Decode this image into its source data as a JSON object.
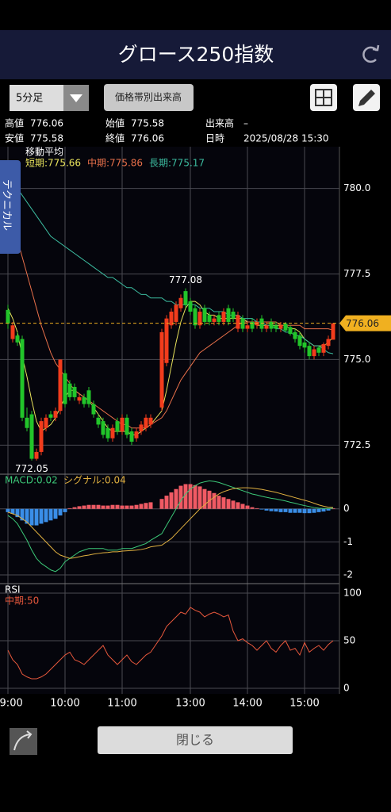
{
  "header": {
    "title": "グロース250指数"
  },
  "toolbar": {
    "interval": "5分足",
    "volume_button": "価格帯別出来高"
  },
  "info": [
    {
      "label": "高値",
      "value": "776.06"
    },
    {
      "label": "始値",
      "value": "775.58"
    },
    {
      "label": "出来高",
      "value": "–"
    },
    {
      "label": "安値",
      "value": "775.58"
    },
    {
      "label": "終値",
      "value": "776.06"
    },
    {
      "label": "日時",
      "value": "2025/08/28 15:30"
    }
  ],
  "side_tab": "テクニカル",
  "footer": {
    "close": "閉じる"
  },
  "chart_data": [
    {
      "type": "candlestick",
      "title": "移動平均",
      "x": [
        "09:00",
        "09:05",
        "09:10",
        "09:15",
        "09:20",
        "09:25",
        "09:30",
        "09:35",
        "09:40",
        "09:45",
        "09:50",
        "09:55",
        "10:00",
        "10:05",
        "10:10",
        "10:15",
        "10:20",
        "10:25",
        "10:30",
        "10:35",
        "10:40",
        "10:45",
        "10:50",
        "10:55",
        "11:00",
        "11:05",
        "11:10",
        "11:15",
        "11:20",
        "11:25",
        "11:30",
        "12:30",
        "12:35",
        "12:40",
        "12:45",
        "12:50",
        "12:55",
        "13:00",
        "13:05",
        "13:10",
        "13:15",
        "13:20",
        "13:25",
        "13:30",
        "13:35",
        "13:40",
        "13:45",
        "13:50",
        "13:55",
        "14:00",
        "14:05",
        "14:10",
        "14:15",
        "14:20",
        "14:25",
        "14:30",
        "14:35",
        "14:40",
        "14:45",
        "14:50",
        "14:55",
        "15:00",
        "15:05",
        "15:10",
        "15:15",
        "15:20",
        "15:25",
        "15:30"
      ],
      "open": [
        776.45,
        775.6,
        775.7,
        775.6,
        773.3,
        773.4,
        772.1,
        772.3,
        773.0,
        773.4,
        773.3,
        773.5,
        774.6,
        774.3,
        774.2,
        773.8,
        773.9,
        774.1,
        773.7,
        773.3,
        773.2,
        773.0,
        772.7,
        773.2,
        772.9,
        773.3,
        772.9,
        772.7,
        772.9,
        773.0,
        773.1,
        773.6,
        774.9,
        776.0,
        776.1,
        776.5,
        777.0,
        776.7,
        776.5,
        776.0,
        776.5,
        776.3,
        776.1,
        776.3,
        776.1,
        776.5,
        776.4,
        775.9,
        776.2,
        775.9,
        776.1,
        776.0,
        776.2,
        775.9,
        776.1,
        776.0,
        775.9,
        776.05,
        775.95,
        775.8,
        775.7,
        775.5,
        775.4,
        775.1,
        775.35,
        775.2,
        775.4,
        775.58
      ],
      "high": [
        776.6,
        776.1,
        775.8,
        775.7,
        773.6,
        773.5,
        772.4,
        773.3,
        773.4,
        773.5,
        773.6,
        775.0,
        774.7,
        774.4,
        774.3,
        774.0,
        774.0,
        774.2,
        773.8,
        773.4,
        773.3,
        773.1,
        773.1,
        773.3,
        773.4,
        773.4,
        773.0,
        773.0,
        773.2,
        773.4,
        773.4,
        775.9,
        776.3,
        776.5,
        776.7,
        776.9,
        777.08,
        776.8,
        776.6,
        776.5,
        776.6,
        776.4,
        776.3,
        776.4,
        776.5,
        776.6,
        776.5,
        776.4,
        776.3,
        776.1,
        776.2,
        776.2,
        776.3,
        776.1,
        776.2,
        776.1,
        776.1,
        776.1,
        776.0,
        775.9,
        775.8,
        775.6,
        775.5,
        775.4,
        775.4,
        775.5,
        775.7,
        776.06
      ],
      "low": [
        775.9,
        775.5,
        775.4,
        773.2,
        772.9,
        772.05,
        772.05,
        772.2,
        772.9,
        773.2,
        773.2,
        773.4,
        773.6,
        773.8,
        773.8,
        773.7,
        773.6,
        773.6,
        773.3,
        773.0,
        772.7,
        772.6,
        772.6,
        772.8,
        772.8,
        772.7,
        772.5,
        772.6,
        772.8,
        772.9,
        773.0,
        773.5,
        774.8,
        775.9,
        776.0,
        776.4,
        776.5,
        776.3,
        775.9,
        775.9,
        776.0,
        776.0,
        776.0,
        776.0,
        776.0,
        776.0,
        776.1,
        775.8,
        775.8,
        775.8,
        775.8,
        775.9,
        775.8,
        775.8,
        775.8,
        775.8,
        775.8,
        775.8,
        775.7,
        775.5,
        775.3,
        775.2,
        775.0,
        775.0,
        775.1,
        775.1,
        775.3,
        775.58
      ],
      "close": [
        776.05,
        776.0,
        775.5,
        773.3,
        773.0,
        772.1,
        772.3,
        773.2,
        773.3,
        773.3,
        773.5,
        775.0,
        773.7,
        773.9,
        773.9,
        773.9,
        773.7,
        773.7,
        773.4,
        773.1,
        772.8,
        772.7,
        773.0,
        772.9,
        773.3,
        772.8,
        772.6,
        772.9,
        773.1,
        773.3,
        773.3,
        775.8,
        776.2,
        776.4,
        776.6,
        776.8,
        776.6,
        776.4,
        776.0,
        776.4,
        776.1,
        776.1,
        776.2,
        776.1,
        776.4,
        776.1,
        776.2,
        776.3,
        775.9,
        776.0,
        775.9,
        776.1,
        775.9,
        776.0,
        775.9,
        775.9,
        776.0,
        775.85,
        775.75,
        775.6,
        775.4,
        775.35,
        775.1,
        775.3,
        775.2,
        775.45,
        775.6,
        776.06
      ],
      "up_color": "#f23c1c",
      "down_color": "#22c52a",
      "series": [
        {
          "name": "短期:775.66",
          "color": "#e8e25c",
          "values": [
            776.5,
            776.2,
            775.8,
            775.1,
            774.5,
            773.8,
            773.2,
            772.9,
            773.0,
            773.1,
            773.3,
            773.6,
            773.9,
            774.1,
            774.1,
            774.0,
            773.9,
            773.8,
            773.6,
            773.4,
            773.2,
            773.0,
            772.9,
            772.9,
            772.9,
            772.9,
            772.8,
            772.8,
            772.9,
            773.0,
            773.1,
            773.5,
            774.1,
            774.8,
            775.5,
            776.1,
            776.5,
            776.7,
            776.7,
            776.6,
            776.4,
            776.3,
            776.3,
            776.2,
            776.2,
            776.2,
            776.2,
            776.2,
            776.2,
            776.1,
            776.1,
            776.0,
            776.0,
            776.0,
            776.0,
            776.0,
            776.0,
            776.0,
            775.9,
            775.9,
            775.8,
            775.6,
            775.5,
            775.4,
            775.4,
            775.4,
            775.5,
            775.66
          ]
        },
        {
          "name": "中期:775.86",
          "color": "#e8704a",
          "values": [
            779.3,
            778.9,
            778.5,
            778.0,
            777.5,
            777.0,
            776.5,
            776.0,
            775.6,
            775.2,
            774.9,
            774.7,
            774.5,
            774.3,
            774.1,
            774.0,
            773.9,
            773.8,
            773.7,
            773.6,
            773.5,
            773.4,
            773.3,
            773.2,
            773.1,
            773.1,
            773.0,
            773.0,
            773.0,
            773.0,
            773.1,
            773.3,
            773.5,
            773.8,
            774.1,
            774.4,
            774.6,
            774.8,
            775.0,
            775.2,
            775.3,
            775.4,
            775.5,
            775.6,
            775.7,
            775.8,
            775.9,
            776.0,
            776.1,
            776.1,
            776.1,
            776.1,
            776.1,
            776.1,
            776.1,
            776.1,
            776.0,
            776.0,
            776.0,
            776.0,
            776.0,
            775.9,
            775.9,
            775.9,
            775.9,
            775.9,
            775.9,
            775.86
          ]
        },
        {
          "name": "長期:775.17",
          "color": "#3cbca0",
          "values": [
            780.3,
            780.2,
            780.0,
            779.8,
            779.6,
            779.4,
            779.2,
            779.0,
            778.8,
            778.6,
            778.5,
            778.4,
            778.3,
            778.2,
            778.1,
            778.0,
            777.9,
            777.8,
            777.7,
            777.6,
            777.5,
            777.4,
            777.4,
            777.3,
            777.2,
            777.1,
            777.1,
            777.0,
            776.9,
            776.9,
            776.8,
            776.8,
            776.7,
            776.7,
            776.6,
            776.6,
            776.6,
            776.6,
            776.6,
            776.5,
            776.5,
            776.5,
            776.4,
            776.4,
            776.4,
            776.3,
            776.3,
            776.3,
            776.2,
            776.2,
            776.2,
            776.1,
            776.1,
            776.0,
            776.0,
            775.9,
            775.9,
            775.8,
            775.8,
            775.7,
            775.7,
            775.6,
            775.5,
            775.4,
            775.4,
            775.3,
            775.2,
            775.17
          ]
        }
      ],
      "last": 776.06,
      "last_color": "#f0b020",
      "annotations": [
        {
          "x": "12:55",
          "value": 777.08
        },
        {
          "x": "09:25",
          "value": 772.05
        }
      ],
      "ylim": [
        771.65,
        781.22
      ],
      "yticks": [
        {
          "value": 780,
          "label": "780.0"
        },
        777.5,
        {
          "value": 775,
          "label": "775.0"
        },
        772.5
      ],
      "grid": true
    },
    {
      "type": "macd",
      "series": [
        {
          "name": "MACD:0.02",
          "color": "#3cc878",
          "values": [
            -0.2,
            -0.3,
            -0.45,
            -0.7,
            -0.95,
            -1.25,
            -1.5,
            -1.65,
            -1.75,
            -1.85,
            -1.9,
            -1.8,
            -1.6,
            -1.5,
            -1.4,
            -1.3,
            -1.25,
            -1.2,
            -1.2,
            -1.2,
            -1.2,
            -1.25,
            -1.25,
            -1.25,
            -1.2,
            -1.2,
            -1.2,
            -1.15,
            -1.1,
            -1.05,
            -0.95,
            -0.75,
            -0.5,
            -0.25,
            0.0,
            0.25,
            0.45,
            0.6,
            0.7,
            0.78,
            0.82,
            0.85,
            0.83,
            0.8,
            0.75,
            0.7,
            0.65,
            0.6,
            0.55,
            0.5,
            0.45,
            0.42,
            0.38,
            0.35,
            0.32,
            0.3,
            0.27,
            0.24,
            0.2,
            0.17,
            0.13,
            0.1,
            0.07,
            0.04,
            0.02,
            0.01,
            0.01,
            0.02
          ]
        },
        {
          "name": "シグナル:0.04",
          "color": "#e0b040",
          "values": [
            -0.1,
            -0.15,
            -0.2,
            -0.3,
            -0.4,
            -0.55,
            -0.7,
            -0.85,
            -1.0,
            -1.15,
            -1.3,
            -1.4,
            -1.45,
            -1.5,
            -1.48,
            -1.45,
            -1.42,
            -1.4,
            -1.37,
            -1.35,
            -1.33,
            -1.32,
            -1.3,
            -1.3,
            -1.28,
            -1.27,
            -1.26,
            -1.25,
            -1.23,
            -1.2,
            -1.15,
            -1.1,
            -1.0,
            -0.9,
            -0.75,
            -0.6,
            -0.45,
            -0.3,
            -0.15,
            0.0,
            0.12,
            0.25,
            0.35,
            0.45,
            0.52,
            0.57,
            0.61,
            0.63,
            0.64,
            0.64,
            0.63,
            0.61,
            0.59,
            0.56,
            0.53,
            0.5,
            0.46,
            0.42,
            0.38,
            0.34,
            0.3,
            0.26,
            0.22,
            0.17,
            0.12,
            0.08,
            0.05,
            0.04
          ]
        }
      ],
      "histogram": {
        "up_color": "#f05a64",
        "down_color": "#3a8ee8",
        "values": [
          -0.1,
          -0.15,
          -0.25,
          -0.35,
          -0.45,
          -0.5,
          -0.5,
          -0.45,
          -0.4,
          -0.35,
          -0.3,
          -0.2,
          -0.1,
          0.02,
          0.05,
          0.08,
          0.1,
          0.12,
          0.12,
          0.12,
          0.1,
          0.1,
          0.12,
          0.12,
          0.1,
          0.1,
          0.1,
          0.12,
          0.15,
          0.18,
          0.2,
          0.3,
          0.4,
          0.5,
          0.6,
          0.7,
          0.75,
          0.75,
          0.72,
          0.68,
          0.6,
          0.55,
          0.48,
          0.4,
          0.35,
          0.3,
          0.25,
          0.2,
          0.15,
          0.1,
          0.05,
          0.02,
          -0.02,
          -0.05,
          -0.07,
          -0.08,
          -0.1,
          -0.1,
          -0.12,
          -0.12,
          -0.12,
          -0.13,
          -0.13,
          -0.12,
          -0.1,
          -0.08,
          -0.05,
          0.02
        ]
      },
      "ylim": [
        -2.24,
        1.05
      ],
      "yticks": [
        0,
        -1,
        -2
      ],
      "grid": true
    },
    {
      "type": "line",
      "title": "RSI",
      "series": [
        {
          "name": "中期:50",
          "color": "#e8583c",
          "values": [
            40,
            30,
            25,
            15,
            12,
            10,
            10,
            12,
            15,
            20,
            25,
            30,
            35,
            38,
            30,
            28,
            25,
            30,
            35,
            40,
            45,
            35,
            30,
            25,
            30,
            35,
            28,
            25,
            30,
            35,
            38,
            55,
            65,
            70,
            75,
            80,
            78,
            85,
            82,
            80,
            75,
            78,
            80,
            78,
            75,
            77,
            60,
            50,
            52,
            48,
            45,
            40,
            45,
            50,
            42,
            38,
            45,
            50,
            40,
            42,
            35,
            48,
            38,
            42,
            45,
            40,
            46,
            50
          ]
        }
      ],
      "ylim": [
        -5.8,
        108.3
      ],
      "yticks": [
        0,
        50,
        100
      ],
      "xticks": [
        "09:00",
        "10:00",
        "11:00",
        "13:00",
        "14:00",
        "15:00"
      ],
      "grid": true
    }
  ]
}
